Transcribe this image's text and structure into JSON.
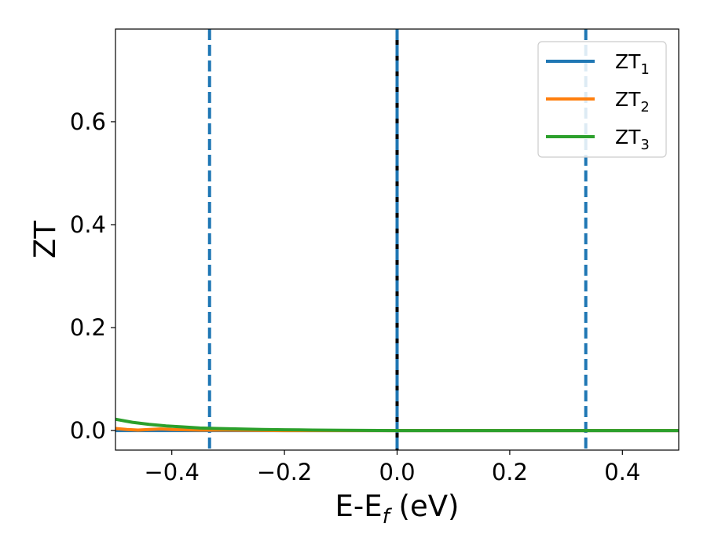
{
  "chart_data": {
    "type": "line",
    "title": "",
    "xlabel_main": "E-E",
    "xlabel_sub": "f",
    "xlabel_tail": " (eV)",
    "ylabel": "ZT",
    "xlim": [
      -0.5,
      0.5
    ],
    "ylim": [
      -0.038,
      0.78
    ],
    "x_ticks": [
      -0.4,
      -0.2,
      0.0,
      0.2,
      0.4
    ],
    "x_tick_labels": [
      "−0.4",
      "−0.2",
      "0.0",
      "0.2",
      "0.4"
    ],
    "y_ticks": [
      0.0,
      0.2,
      0.4,
      0.6
    ],
    "y_tick_labels": [
      "0.0",
      "0.2",
      "0.4",
      "0.6"
    ],
    "grid": false,
    "legend_position": "top-right",
    "series": [
      {
        "name_main": "ZT",
        "name_sub": "1",
        "color": "#1f77b4",
        "x": [
          -0.5,
          -0.45,
          -0.4,
          -0.3,
          -0.2,
          -0.1,
          0.0,
          0.1,
          0.2,
          0.3,
          0.4,
          0.5
        ],
        "y": [
          0.0,
          0.0,
          0.0,
          0.0,
          0.0,
          0.0,
          0.0,
          0.0,
          0.0,
          0.0,
          0.0,
          0.0
        ]
      },
      {
        "name_main": "ZT",
        "name_sub": "2",
        "color": "#ff7f0e",
        "x": [
          -0.5,
          -0.48,
          -0.46,
          -0.44,
          -0.42,
          -0.4,
          -0.35,
          -0.3,
          -0.2,
          -0.1,
          0.0,
          0.1,
          0.2,
          0.3,
          0.4,
          0.5
        ],
        "y": [
          0.004,
          0.002,
          0.001,
          0.002,
          0.003,
          0.002,
          0.001,
          0.001,
          0.0,
          0.0,
          0.0,
          0.0,
          0.0,
          0.0,
          0.0,
          0.0
        ]
      },
      {
        "name_main": "ZT",
        "name_sub": "3",
        "color": "#2ca02c",
        "x": [
          -0.5,
          -0.47,
          -0.44,
          -0.41,
          -0.38,
          -0.35,
          -0.32,
          -0.28,
          -0.24,
          -0.2,
          -0.15,
          -0.1,
          0.0,
          0.1,
          0.2,
          0.3,
          0.4,
          0.5
        ],
        "y": [
          0.022,
          0.016,
          0.012,
          0.009,
          0.007,
          0.005,
          0.004,
          0.003,
          0.002,
          0.0015,
          0.001,
          0.0005,
          0.0,
          0.0,
          0.0,
          0.0,
          0.0,
          0.0
        ]
      }
    ],
    "vlines": [
      {
        "x": -0.333,
        "color": "#1f77b4",
        "style": "dashed"
      },
      {
        "x": 0.0,
        "color": "#000000",
        "style": "solid"
      },
      {
        "x": 0.0,
        "color": "#1f77b4",
        "style": "dashed"
      },
      {
        "x": 0.335,
        "color": "#1f77b4",
        "style": "dashed"
      }
    ]
  }
}
